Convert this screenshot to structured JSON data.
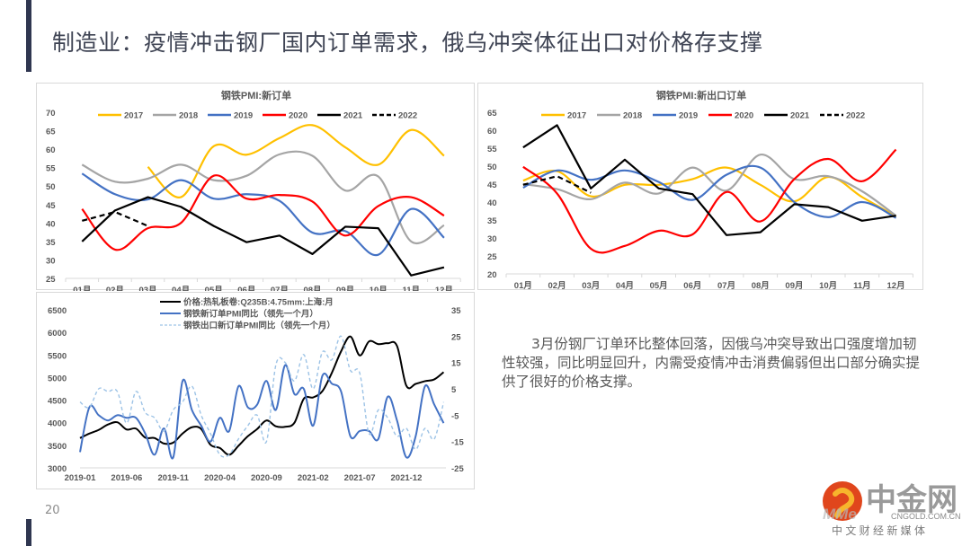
{
  "page": {
    "title": "制造业：疫情冲击钢厂国内订单需求，俄乌冲突体征出口对价格存支撑",
    "page_number": "20",
    "note": "3月份钢厂订单环比整体回落，因俄乌冲突导致出口强度增加韧性较强，同比明显回升，内需受疫情冲击消费偏弱但出口部分确实提供了很好的价格支撑。",
    "accent_color": "#2f3650"
  },
  "logo": {
    "name": "中金网",
    "domain": "CNGOLD.COM.CN",
    "tagline": "中 文 财 经 新 媒 体",
    "watermark": "MMe迈科期货"
  },
  "chart_data": [
    {
      "type": "line",
      "title": "钢铁PMI:新订单",
      "categories": [
        "01月",
        "02月",
        "03月",
        "04月",
        "05月",
        "06月",
        "07月",
        "08月",
        "09月",
        "10月",
        "11月",
        "12月"
      ],
      "ylim": [
        25,
        70
      ],
      "yticks": [
        "70",
        "65",
        "60",
        "55",
        "50",
        "45",
        "40",
        "35",
        "30",
        "25"
      ],
      "ytick_values": [
        70,
        65,
        60,
        55,
        50,
        45,
        40,
        35,
        30,
        25
      ],
      "legend": "top",
      "series": [
        {
          "name": "2017",
          "color": "#ffc000",
          "dash": false,
          "smooth": true,
          "values": [
            null,
            null,
            55.2,
            47.0,
            60.8,
            58.5,
            63.0,
            66.5,
            60.5,
            55.8,
            65.2,
            58.2
          ]
        },
        {
          "name": "2018",
          "color": "#a5a5a5",
          "dash": false,
          "smooth": true,
          "values": [
            55.8,
            51.2,
            52.0,
            55.8,
            51.6,
            52.8,
            58.6,
            58.2,
            48.8,
            52.6,
            35.0,
            39.4
          ]
        },
        {
          "name": "2019",
          "color": "#4472c4",
          "dash": false,
          "smooth": true,
          "values": [
            53.4,
            47.8,
            46.4,
            51.6,
            46.6,
            47.8,
            46.0,
            37.4,
            37.8,
            31.4,
            43.8,
            36.0
          ]
        },
        {
          "name": "2020",
          "color": "#ff0000",
          "dash": false,
          "smooth": true,
          "values": [
            43.8,
            32.8,
            38.6,
            40.0,
            52.8,
            46.6,
            47.6,
            45.8,
            36.6,
            44.6,
            47.0,
            42.0
          ]
        },
        {
          "name": "2021",
          "color": "#000000",
          "dash": false,
          "smooth": false,
          "values": [
            35.0,
            43.4,
            47.0,
            44.4,
            39.2,
            34.8,
            36.6,
            31.6,
            39.0,
            38.6,
            25.8,
            28.0
          ]
        },
        {
          "name": "2022",
          "color": "#000000",
          "dash": true,
          "smooth": false,
          "values": [
            40.6,
            43.0,
            39.2,
            null,
            null,
            null,
            null,
            null,
            null,
            null,
            null,
            null
          ]
        }
      ]
    },
    {
      "type": "line",
      "title": "钢铁PMI:新出口订单",
      "categories": [
        "01月",
        "02月",
        "03月",
        "04月",
        "05月",
        "06月",
        "07月",
        "08月",
        "09月",
        "10月",
        "11月",
        "12月"
      ],
      "ylim": [
        20,
        65
      ],
      "yticks": [
        "65",
        "60",
        "55",
        "50",
        "45",
        "40",
        "35",
        "30",
        "25",
        "20"
      ],
      "ytick_values": [
        65,
        60,
        55,
        50,
        45,
        40,
        35,
        30,
        25,
        20
      ],
      "legend": "top",
      "series": [
        {
          "name": "2017",
          "color": "#ffc000",
          "dash": false,
          "smooth": true,
          "values": [
            46.0,
            48.6,
            41.6,
            44.8,
            44.8,
            46.4,
            49.6,
            44.8,
            40.2,
            47.0,
            41.4,
            36.0
          ]
        },
        {
          "name": "2018",
          "color": "#a5a5a5",
          "dash": false,
          "smooth": true,
          "values": [
            45.0,
            43.6,
            40.8,
            45.4,
            42.4,
            49.6,
            43.2,
            53.2,
            46.4,
            47.2,
            43.0,
            36.2
          ]
        },
        {
          "name": "2019",
          "color": "#4472c4",
          "dash": false,
          "smooth": true,
          "values": [
            44.0,
            48.8,
            46.2,
            48.8,
            45.6,
            40.6,
            47.6,
            49.6,
            40.0,
            35.8,
            40.0,
            35.6
          ]
        },
        {
          "name": "2020",
          "color": "#ff0000",
          "dash": false,
          "smooth": true,
          "values": [
            49.8,
            42.4,
            27.0,
            27.8,
            32.0,
            31.0,
            42.8,
            34.6,
            46.4,
            52.0,
            45.8,
            54.6
          ]
        },
        {
          "name": "2021",
          "color": "#000000",
          "dash": false,
          "smooth": false,
          "values": [
            55.2,
            61.4,
            43.8,
            51.8,
            43.8,
            42.2,
            30.8,
            31.6,
            39.4,
            38.6,
            34.8,
            36.2
          ]
        },
        {
          "name": "2022",
          "color": "#000000",
          "dash": true,
          "smooth": false,
          "values": [
            44.8,
            47.2,
            42.6,
            null,
            null,
            null,
            null,
            null,
            null,
            null,
            null,
            null
          ]
        }
      ]
    },
    {
      "type": "line",
      "title": "",
      "xticks": [
        "2019-01",
        "2019-06",
        "2019-11",
        "2020-04",
        "2020-09",
        "2021-02",
        "2021-07",
        "2021-12"
      ],
      "x_start": "2019-01",
      "x_end": "2022-04",
      "ylim_left": [
        3000,
        6500
      ],
      "ylim_right": [
        -25,
        35
      ],
      "yticks_left": [
        "6500",
        "6000",
        "5500",
        "5000",
        "4500",
        "4000",
        "3500",
        "3000"
      ],
      "yticks_left_values": [
        6500,
        6000,
        5500,
        5000,
        4500,
        4000,
        3500,
        3000
      ],
      "yticks_right": [
        "35",
        "25",
        "15",
        "5",
        "-5",
        "-15",
        "-25"
      ],
      "yticks_right_values": [
        35,
        25,
        15,
        5,
        -5,
        -15,
        -25
      ],
      "legend": "top-center",
      "series": [
        {
          "name": "价格:热轧板卷:Q235B:4.75mm:上海:月",
          "axis": "left",
          "color": "#000000",
          "dash": false,
          "values": [
            3660,
            3760,
            3840,
            3960,
            4010,
            3850,
            3870,
            3670,
            3660,
            3540,
            3560,
            3760,
            3900,
            3860,
            3510,
            3440,
            3290,
            3490,
            3700,
            3860,
            4050,
            3920,
            3910,
            4000,
            4530,
            4560,
            4700,
            5100,
            5580,
            5910,
            5490,
            5800,
            5740,
            5760,
            5700,
            4820,
            4860,
            4920,
            4960,
            5120
          ]
        },
        {
          "name": "钢铁新订单PMI同比（领先一个月）",
          "axis": "right",
          "color": "#4472c4",
          "dash": false,
          "values": [
            -19,
            -2,
            -5,
            -7,
            -5,
            -6,
            -6,
            -12,
            -20,
            -10,
            -21,
            8,
            -3,
            -9,
            -15,
            -6,
            -11,
            6,
            -2,
            -1,
            8,
            -3,
            14,
            3,
            5,
            -9,
            10,
            7,
            4,
            -13,
            -11,
            -11,
            -14,
            2,
            -7,
            -21,
            -13,
            6,
            -1,
            -8
          ]
        },
        {
          "name": "钢铁出口新订单PMI同比（领先一个月）",
          "axis": "right",
          "color": "#9dc3e6",
          "dash": true,
          "values": [
            0,
            -2,
            5,
            4,
            4,
            -8,
            4,
            -4,
            -6,
            -11,
            -3,
            0,
            6,
            -5,
            -12,
            -20,
            -20,
            -14,
            -9,
            -5,
            -15,
            14,
            15,
            8,
            18,
            5,
            19,
            16,
            25,
            12,
            11,
            -12,
            -3,
            -6,
            -13,
            -10,
            -18,
            -10,
            -14,
            0
          ]
        }
      ]
    }
  ]
}
